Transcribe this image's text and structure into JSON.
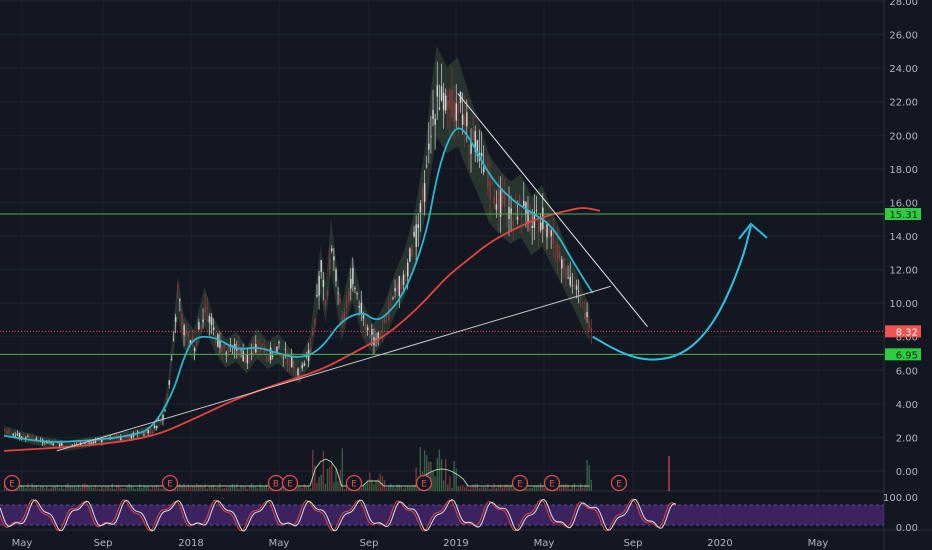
{
  "chart_data": [
    {
      "type": "candlestick",
      "ylim": [
        0,
        28
      ],
      "y_ticks": [
        "28.00",
        "26.00",
        "24.00",
        "22.00",
        "20.00",
        "18.00",
        "16.00",
        "14.00",
        "12.00",
        "10.00",
        "8.00",
        "6.00",
        "4.00",
        "2.00",
        "0.00"
      ],
      "x_ticks": [
        "May",
        "Sep",
        "2018",
        "May",
        "Sep",
        "2019",
        "May",
        "Sep",
        "2020",
        "May"
      ],
      "grid": true,
      "price_series": [
        {
          "t": 0,
          "v": 2.4
        },
        {
          "t": 2,
          "v": 2.0
        },
        {
          "t": 4,
          "v": 1.7
        },
        {
          "t": 6,
          "v": 1.5
        },
        {
          "t": 8,
          "v": 1.7
        },
        {
          "t": 10,
          "v": 1.9
        },
        {
          "t": 12,
          "v": 2.1
        },
        {
          "t": 14,
          "v": 2.4
        },
        {
          "t": 15,
          "v": 3.2
        },
        {
          "t": 15.5,
          "v": 4.5
        },
        {
          "t": 16,
          "v": 7.5
        },
        {
          "t": 16.4,
          "v": 10.8
        },
        {
          "t": 17,
          "v": 8.3
        },
        {
          "t": 18,
          "v": 7.5
        },
        {
          "t": 19,
          "v": 9.8
        },
        {
          "t": 20,
          "v": 8.0
        },
        {
          "t": 21,
          "v": 7.0
        },
        {
          "t": 22,
          "v": 7.4
        },
        {
          "t": 23,
          "v": 6.6
        },
        {
          "t": 24,
          "v": 7.6
        },
        {
          "t": 25,
          "v": 6.9
        },
        {
          "t": 26,
          "v": 7.3
        },
        {
          "t": 27,
          "v": 6.6
        },
        {
          "t": 28,
          "v": 5.9
        },
        {
          "t": 29,
          "v": 7.2
        },
        {
          "t": 30,
          "v": 12.0
        },
        {
          "t": 30.5,
          "v": 10.0
        },
        {
          "t": 31,
          "v": 13.5
        },
        {
          "t": 32,
          "v": 8.8
        },
        {
          "t": 33,
          "v": 11.5
        },
        {
          "t": 34,
          "v": 9.0
        },
        {
          "t": 35,
          "v": 7.8
        },
        {
          "t": 36,
          "v": 8.8
        },
        {
          "t": 37,
          "v": 10.5
        },
        {
          "t": 38,
          "v": 11.8
        },
        {
          "t": 39,
          "v": 14.0
        },
        {
          "t": 40,
          "v": 17.5
        },
        {
          "t": 40.5,
          "v": 20.5
        },
        {
          "t": 41,
          "v": 22.6
        },
        {
          "t": 42,
          "v": 21.5
        },
        {
          "t": 43,
          "v": 22.0
        },
        {
          "t": 44,
          "v": 20.2
        },
        {
          "t": 45,
          "v": 18.6
        },
        {
          "t": 46,
          "v": 16.8
        },
        {
          "t": 47,
          "v": 16.0
        },
        {
          "t": 48,
          "v": 15.4
        },
        {
          "t": 49,
          "v": 15.8
        },
        {
          "t": 50,
          "v": 14.6
        },
        {
          "t": 51,
          "v": 15.2
        },
        {
          "t": 52,
          "v": 13.8
        },
        {
          "t": 53,
          "v": 12.4
        },
        {
          "t": 54,
          "v": 11.0
        },
        {
          "t": 55,
          "v": 9.4
        },
        {
          "t": 55.8,
          "v": 8.5
        }
      ],
      "ma_fast": [
        {
          "t": 0,
          "v": 2.1
        },
        {
          "t": 4,
          "v": 1.7
        },
        {
          "t": 8,
          "v": 1.8
        },
        {
          "t": 12,
          "v": 2.1
        },
        {
          "t": 14,
          "v": 2.5
        },
        {
          "t": 16,
          "v": 4.6
        },
        {
          "t": 17,
          "v": 6.7
        },
        {
          "t": 18,
          "v": 8.0
        },
        {
          "t": 20,
          "v": 8.0
        },
        {
          "t": 22,
          "v": 7.2
        },
        {
          "t": 24,
          "v": 7.4
        },
        {
          "t": 26,
          "v": 7.0
        },
        {
          "t": 28,
          "v": 6.7
        },
        {
          "t": 30,
          "v": 7.2
        },
        {
          "t": 32,
          "v": 9.0
        },
        {
          "t": 34,
          "v": 9.5
        },
        {
          "t": 35,
          "v": 9.0
        },
        {
          "t": 36,
          "v": 9.1
        },
        {
          "t": 38,
          "v": 10.6
        },
        {
          "t": 40,
          "v": 14.0
        },
        {
          "t": 41,
          "v": 17.5
        },
        {
          "t": 42,
          "v": 19.6
        },
        {
          "t": 43,
          "v": 20.6
        },
        {
          "t": 44,
          "v": 20.0
        },
        {
          "t": 46,
          "v": 17.6
        },
        {
          "t": 48,
          "v": 16.2
        },
        {
          "t": 50,
          "v": 15.4
        },
        {
          "t": 52,
          "v": 14.6
        },
        {
          "t": 54,
          "v": 12.4
        },
        {
          "t": 55.8,
          "v": 10.6
        }
      ],
      "ma_slow": [
        {
          "t": 0,
          "v": 1.2
        },
        {
          "t": 8,
          "v": 1.5
        },
        {
          "t": 14,
          "v": 2.0
        },
        {
          "t": 18,
          "v": 3.1
        },
        {
          "t": 22,
          "v": 4.3
        },
        {
          "t": 26,
          "v": 5.2
        },
        {
          "t": 30,
          "v": 6.0
        },
        {
          "t": 33,
          "v": 7.0
        },
        {
          "t": 36,
          "v": 8.0
        },
        {
          "t": 38,
          "v": 9.0
        },
        {
          "t": 40,
          "v": 10.2
        },
        {
          "t": 42,
          "v": 11.6
        },
        {
          "t": 44,
          "v": 12.6
        },
        {
          "t": 46,
          "v": 13.6
        },
        {
          "t": 48,
          "v": 14.3
        },
        {
          "t": 50,
          "v": 14.9
        },
        {
          "t": 52,
          "v": 15.3
        },
        {
          "t": 54,
          "v": 15.6
        },
        {
          "t": 55,
          "v": 15.7
        },
        {
          "t": 56.5,
          "v": 15.5
        }
      ],
      "support_trendline": [
        {
          "t": 5,
          "v": 1.2
        },
        {
          "t": 57.5,
          "v": 11.0
        }
      ],
      "resistance_trendline": [
        {
          "t": 43,
          "v": 22.5
        },
        {
          "t": 61,
          "v": 8.6
        }
      ],
      "projection_curve": [
        {
          "t": 55.8,
          "v": 8.0
        },
        {
          "t": 58,
          "v": 7.2
        },
        {
          "t": 60,
          "v": 6.7
        },
        {
          "t": 62,
          "v": 6.6
        },
        {
          "t": 64,
          "v": 6.9
        },
        {
          "t": 66,
          "v": 7.8
        },
        {
          "t": 68,
          "v": 9.6
        },
        {
          "t": 70,
          "v": 12.6
        },
        {
          "t": 70.8,
          "v": 14.6
        }
      ],
      "horizontal_levels": [
        {
          "price": 15.31,
          "label": "15.31",
          "color": "#4caf50"
        },
        {
          "price": 8.32,
          "label": "8.32",
          "color": "#ef5350",
          "style": "dotted"
        },
        {
          "price": 6.95,
          "label": "6.95",
          "color": "#4caf50"
        }
      ],
      "earnings_markers": [
        "E",
        "E",
        "B",
        "E",
        "E",
        "E",
        "E",
        "E",
        "E",
        "E"
      ]
    },
    {
      "type": "oscillator",
      "y_ticks": [
        "100.00",
        "0.00"
      ],
      "ylim": [
        0,
        100
      ]
    }
  ],
  "colors": {
    "background": "#131722",
    "grid": "#1e2330",
    "axis_text": "#b2b5be",
    "candle_up": "#cfd2d6",
    "candle_down": "#8a3b3b",
    "ma_fast": "#27b8d2",
    "ma_slow": "#e8423a",
    "band": "#3a4d38",
    "trendline": "#e6e6e6",
    "projection": "#29c3e0",
    "osc_band": "#5c2d91"
  }
}
